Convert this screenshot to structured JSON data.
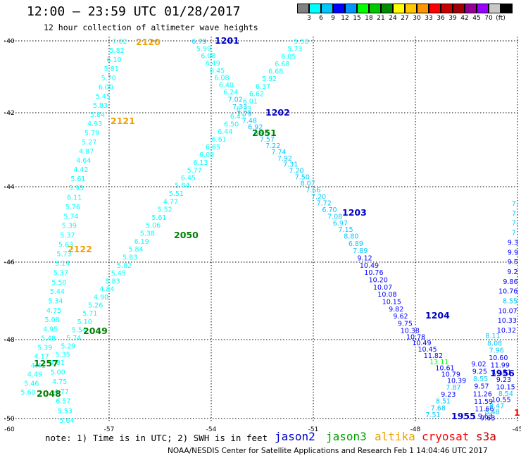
{
  "header": {
    "title": "12:00 — 23:59 UTC 01/28/2017",
    "subtitle": "12 hour collection of altimeter wave heights"
  },
  "scale": {
    "colors": [
      "#808080",
      "#00ffff",
      "#00c8ff",
      "#0000ff",
      "#0096ff",
      "#00ff00",
      "#00c800",
      "#008c00",
      "#ffff00",
      "#ffc800",
      "#ff9600",
      "#ff0000",
      "#c80000",
      "#a00000",
      "#960096",
      "#9600ff",
      "#c8c8c8",
      "#000000"
    ],
    "labels": [
      "3",
      "6",
      "9",
      "12",
      "15",
      "18",
      "21",
      "24",
      "27",
      "30",
      "33",
      "36",
      "39",
      "42",
      "45",
      "70",
      "(ft)"
    ]
  },
  "axes": {
    "lon_labels": [
      "-57",
      "-54",
      "-51",
      "-48",
      "-45"
    ],
    "lat_labels": [
      "-40",
      "-42",
      "-44",
      "-46",
      "-48",
      "-50"
    ],
    "corner_labels": [
      "-60"
    ]
  },
  "track_labels": [
    {
      "text": "2120",
      "color": "#f0a000"
    },
    {
      "text": "2121",
      "color": "#f0a000"
    },
    {
      "text": "2122",
      "color": "#f0a000"
    },
    {
      "text": "1201",
      "color": "#0000c8"
    },
    {
      "text": "1202",
      "color": "#0000c8"
    },
    {
      "text": "1203",
      "color": "#0000c8"
    },
    {
      "text": "1204",
      "color": "#0000c8"
    },
    {
      "text": "2051",
      "color": "#008000"
    },
    {
      "text": "2050",
      "color": "#008000"
    },
    {
      "text": "2049",
      "color": "#008000"
    },
    {
      "text": "2048",
      "color": "#008000"
    },
    {
      "text": "1257",
      "color": "#008000"
    },
    {
      "text": "1955",
      "color": "#0000c8"
    },
    {
      "text": "1956",
      "color": "#0000c8"
    },
    {
      "text": "11",
      "color": "#ff0000"
    }
  ],
  "tracks": {
    "altika": [
      "7.02",
      "5.82",
      "6.10",
      "5.81",
      "5.70",
      "6.00",
      "5.45",
      "5.83",
      "5.84",
      "4.93",
      "5.79",
      "5.27",
      "4.87",
      "4.64",
      "4.42",
      "5.61",
      "5.93",
      "6.11",
      "5.76",
      "5.74",
      "5.39",
      "5.37",
      "5.63",
      "5.73",
      "5.14",
      "5.37",
      "5.50",
      "5.44",
      "5.34",
      "4.75",
      "5.08",
      "4.95",
      "5.48",
      "5.39",
      "4.17",
      "4.41",
      "4.49",
      "5.46",
      "5.60"
    ],
    "jason2_desc": [
      "6.79",
      "5.99",
      "6.08",
      "6.49",
      "6.45",
      "6.08",
      "6.40",
      "6.24",
      "7.02",
      "7.33",
      "7.79",
      "7.48",
      "6.92",
      "6.96",
      "7.57",
      "7.22",
      "7.74",
      "7.92",
      "7.31",
      "7.20",
      "7.50",
      "8.07",
      "7.66",
      "7.20",
      "7.72",
      "6.70",
      "7.08",
      "6.97",
      "7.15",
      "8.80",
      "6.89",
      "7.89",
      "9.12",
      "10.49",
      "10.76",
      "10.20",
      "10.07",
      "10.08",
      "10.15",
      "9.82",
      "9.62",
      "9.75",
      "10.38",
      "10.78",
      "10.49",
      "10.45",
      "11.82",
      "13.11",
      "10.61",
      "10.79",
      "10.39",
      "7.87",
      "9.23",
      "8.51",
      "7.68",
      "7.51"
    ],
    "jason3_asc": [
      "5.58",
      "5.73",
      "6.05",
      "6.68",
      "6.68",
      "5.92",
      "6.37",
      "6.62",
      "6.01",
      "6.33",
      "6.43",
      "6.50",
      "6.44",
      "6.61",
      "6.65",
      "6.09",
      "6.13",
      "5.77",
      "6.45",
      "5.84",
      "5.51",
      "4.77",
      "5.52",
      "5.61",
      "5.06",
      "5.38",
      "6.19",
      "5.84",
      "5.83",
      "5.82",
      "5.45",
      "5.83",
      "4.84",
      "4.90",
      "5.26",
      "5.71",
      "5.10",
      "5.54",
      "5.74",
      "5.29",
      "5.35",
      "4.81",
      "5.00",
      "4.75",
      "4.77",
      "6.57",
      "5.53",
      "5.64"
    ],
    "orbit_1956": [
      "9.02",
      "9.25",
      "8.55",
      "9.57",
      "11.26",
      "11.59",
      "11.66",
      "9.63",
      "9.63",
      "8.48",
      "8.47",
      "10.55",
      "8.54",
      "10.15",
      "9.23",
      "10.51",
      "11.99",
      "10.60",
      "7.96",
      "8.08",
      "8.11"
    ],
    "right_edge": [
      "7.",
      "7.",
      "7.",
      "7.",
      "9.3",
      "9.9",
      "9.5",
      "9.2",
      "9.86",
      "10.76",
      "8.55",
      "10.07",
      "10.33",
      "10.32"
    ]
  },
  "footer": {
    "note": "note: 1) Time is in UTC; 2) SWH is in feet",
    "legend": [
      {
        "name": "jason2",
        "color": "#0000c8"
      },
      {
        "name": "jason3",
        "color": "#00a000"
      },
      {
        "name": "altika",
        "color": "#f0a000"
      },
      {
        "name": "cryosat",
        "color": "#ff0000"
      },
      {
        "name": "s3a",
        "color": "#c80000"
      }
    ],
    "credit": "NOAA/NESDIS Center for Satellite Applications and Research   Feb  1 14:04:46 UTC 2017"
  }
}
